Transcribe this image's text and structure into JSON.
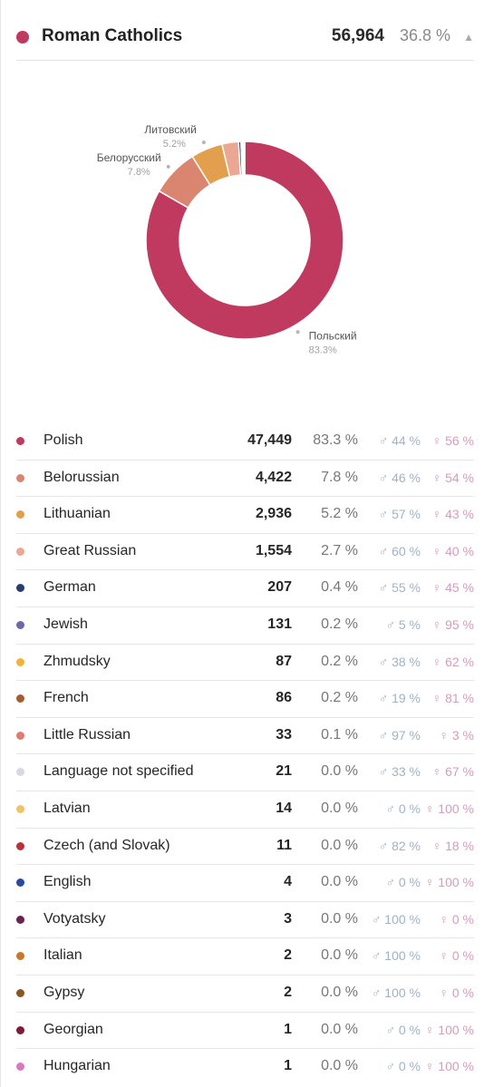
{
  "header": {
    "color": "#c0395f",
    "title": "Roman Catholics",
    "count": "56,964",
    "percent": "36.8 %",
    "caret_icon": "caret-up-icon",
    "caret_glyph": "▲"
  },
  "chart_data": {
    "type": "pie",
    "donut": true,
    "title": "",
    "slices": [
      {
        "label": "Польский",
        "percent_label": "83.3%",
        "value": 83.3,
        "color": "#c0395f"
      },
      {
        "label": "Белорусский",
        "percent_label": "7.8%",
        "value": 7.8,
        "color": "#d98570"
      },
      {
        "label": "Литовский",
        "percent_label": "5.2%",
        "value": 5.2,
        "color": "#e2a04f"
      },
      {
        "label": "",
        "percent_label": "",
        "value": 2.7,
        "color": "#eba792"
      },
      {
        "label": "",
        "percent_label": "",
        "value": 0.4,
        "color": "#2c3a72"
      },
      {
        "label": "",
        "percent_label": "",
        "value": 0.2,
        "color": "#6b6aa8"
      },
      {
        "label": "",
        "percent_label": "",
        "value": 0.2,
        "color": "#f0b33c"
      },
      {
        "label": "",
        "percent_label": "",
        "value": 0.2,
        "color": "#a65c2e"
      }
    ]
  },
  "rows": [
    {
      "color": "#c0395f",
      "name": "Polish",
      "count": "47,449",
      "percent": "83.3 %",
      "male": "♂ 44 %",
      "female": "♀ 56 %"
    },
    {
      "color": "#d98570",
      "name": "Belorussian",
      "count": "4,422",
      "percent": "7.8 %",
      "male": "♂ 46 %",
      "female": "♀ 54 %"
    },
    {
      "color": "#e2a04f",
      "name": "Lithuanian",
      "count": "2,936",
      "percent": "5.2 %",
      "male": "♂ 57 %",
      "female": "♀ 43 %"
    },
    {
      "color": "#eba792",
      "name": "Great Russian",
      "count": "1,554",
      "percent": "2.7 %",
      "male": "♂ 60 %",
      "female": "♀ 40 %"
    },
    {
      "color": "#2c3a72",
      "name": "German",
      "count": "207",
      "percent": "0.4 %",
      "male": "♂ 55 %",
      "female": "♀ 45 %"
    },
    {
      "color": "#6b6aa8",
      "name": "Jewish",
      "count": "131",
      "percent": "0.2 %",
      "male": "♂ 5 %",
      "female": "♀ 95 %"
    },
    {
      "color": "#f0b33c",
      "name": "Zhmudsky",
      "count": "87",
      "percent": "0.2 %",
      "male": "♂ 38 %",
      "female": "♀ 62 %"
    },
    {
      "color": "#a65c2e",
      "name": "French",
      "count": "86",
      "percent": "0.2 %",
      "male": "♂ 19 %",
      "female": "♀ 81 %"
    },
    {
      "color": "#e07b72",
      "name": "Little Russian",
      "count": "33",
      "percent": "0.1 %",
      "male": "♂ 97 %",
      "female": "♀ 3 %"
    },
    {
      "color": "#d8d8e0",
      "name": "Language not specified",
      "count": "21",
      "percent": "0.0 %",
      "male": "♂ 33 %",
      "female": "♀ 67 %"
    },
    {
      "color": "#f0c26a",
      "name": "Latvian",
      "count": "14",
      "percent": "0.0 %",
      "male": "♂ 0 %",
      "female": "♀ 100 %"
    },
    {
      "color": "#b8323a",
      "name": "Czech (and Slovak)",
      "count": "11",
      "percent": "0.0 %",
      "male": "♂ 82 %",
      "female": "♀ 18 %"
    },
    {
      "color": "#2b4a9a",
      "name": "English",
      "count": "4",
      "percent": "0.0 %",
      "male": "♂ 0 %",
      "female": "♀ 100 %"
    },
    {
      "color": "#6a2350",
      "name": "Votyatsky",
      "count": "3",
      "percent": "0.0 %",
      "male": "♂ 100 %",
      "female": "♀ 0 %"
    },
    {
      "color": "#c8752e",
      "name": "Italian",
      "count": "2",
      "percent": "0.0 %",
      "male": "♂ 100 %",
      "female": "♀ 0 %"
    },
    {
      "color": "#8a5524",
      "name": "Gypsy",
      "count": "2",
      "percent": "0.0 %",
      "male": "♂ 100 %",
      "female": "♀ 0 %"
    },
    {
      "color": "#7a1e38",
      "name": "Georgian",
      "count": "1",
      "percent": "0.0 %",
      "male": "♂ 0 %",
      "female": "♀ 100 %"
    },
    {
      "color": "#d979bd",
      "name": "Hungarian",
      "count": "1",
      "percent": "0.0 %",
      "male": "♂ 0 %",
      "female": "♀ 100 %"
    }
  ]
}
